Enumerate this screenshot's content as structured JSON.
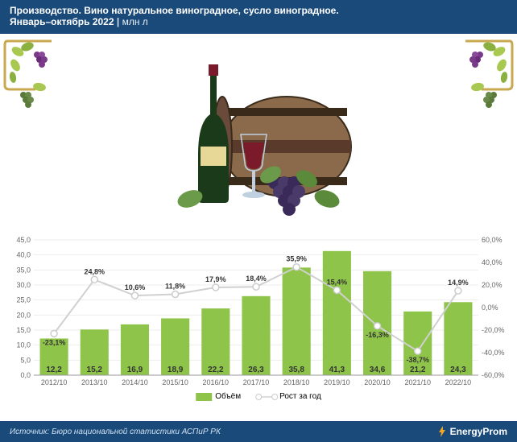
{
  "header": {
    "title_line1": "Производство. Вино натуральное виноградное, сусло виноградное.",
    "title_line2": "Январь–октябрь 2022",
    "unit": "млн л",
    "bg_color": "#1a4a7a",
    "text_color": "#ffffff"
  },
  "illustration": {
    "vine_color": "#a8c850",
    "grape_colors": [
      "#7a3a8a",
      "#5a7a3a"
    ],
    "bottle_color": "#1a3a1a",
    "wine_color": "#7a1a2a",
    "barrel_color": "#5a3a2a",
    "barrel_light": "#8a6a4a"
  },
  "chart": {
    "type": "bar+line",
    "categories": [
      "2012/10",
      "2013/10",
      "2014/10",
      "2015/10",
      "2016/10",
      "2017/10",
      "2018/10",
      "2019/10",
      "2020/10",
      "2021/10",
      "2022/10"
    ],
    "bar_values": [
      12.2,
      15.2,
      16.9,
      18.9,
      22.2,
      26.3,
      35.8,
      41.3,
      34.6,
      21.2,
      24.3
    ],
    "bar_labels": [
      "12,2",
      "15,2",
      "16,9",
      "18,9",
      "22,2",
      "26,3",
      "35,8",
      "41,3",
      "34,6",
      "21,2",
      "24,3"
    ],
    "line_values": [
      -23.1,
      24.8,
      10.6,
      11.8,
      17.9,
      18.4,
      35.9,
      15.4,
      -16.3,
      -38.7,
      14.9
    ],
    "line_labels": [
      "-23,1%",
      "24,8%",
      "10,6%",
      "11,8%",
      "17,9%",
      "18,4%",
      "35,9%",
      "15,4%",
      "-16,3%",
      "-38,7%",
      "14,9%"
    ],
    "left_axis": {
      "min": 0,
      "max": 45,
      "step": 5,
      "ticks": [
        "0,0",
        "5,0",
        "10,0",
        "15,0",
        "20,0",
        "25,0",
        "30,0",
        "35,0",
        "40,0",
        "45,0"
      ]
    },
    "right_axis": {
      "min": -60,
      "max": 60,
      "step": 20,
      "ticks": [
        "-60,0%",
        "-40,0%",
        "-20,0%",
        "0,0%",
        "20,0%",
        "40,0%",
        "60,0%"
      ]
    },
    "bar_color": "#8fc44a",
    "line_color": "#d0d0d0",
    "marker_fill": "#ffffff",
    "marker_stroke": "#cccccc",
    "grid_color": "#dddddd",
    "bg_color": "#ffffff",
    "legend": {
      "bars": "Объём",
      "line": "Рост за год"
    }
  },
  "footer": {
    "source": "Источник: Бюро национальной статистики АСПиР РК",
    "brand": "EnergyProm",
    "lightning_color": "#f5a623"
  }
}
